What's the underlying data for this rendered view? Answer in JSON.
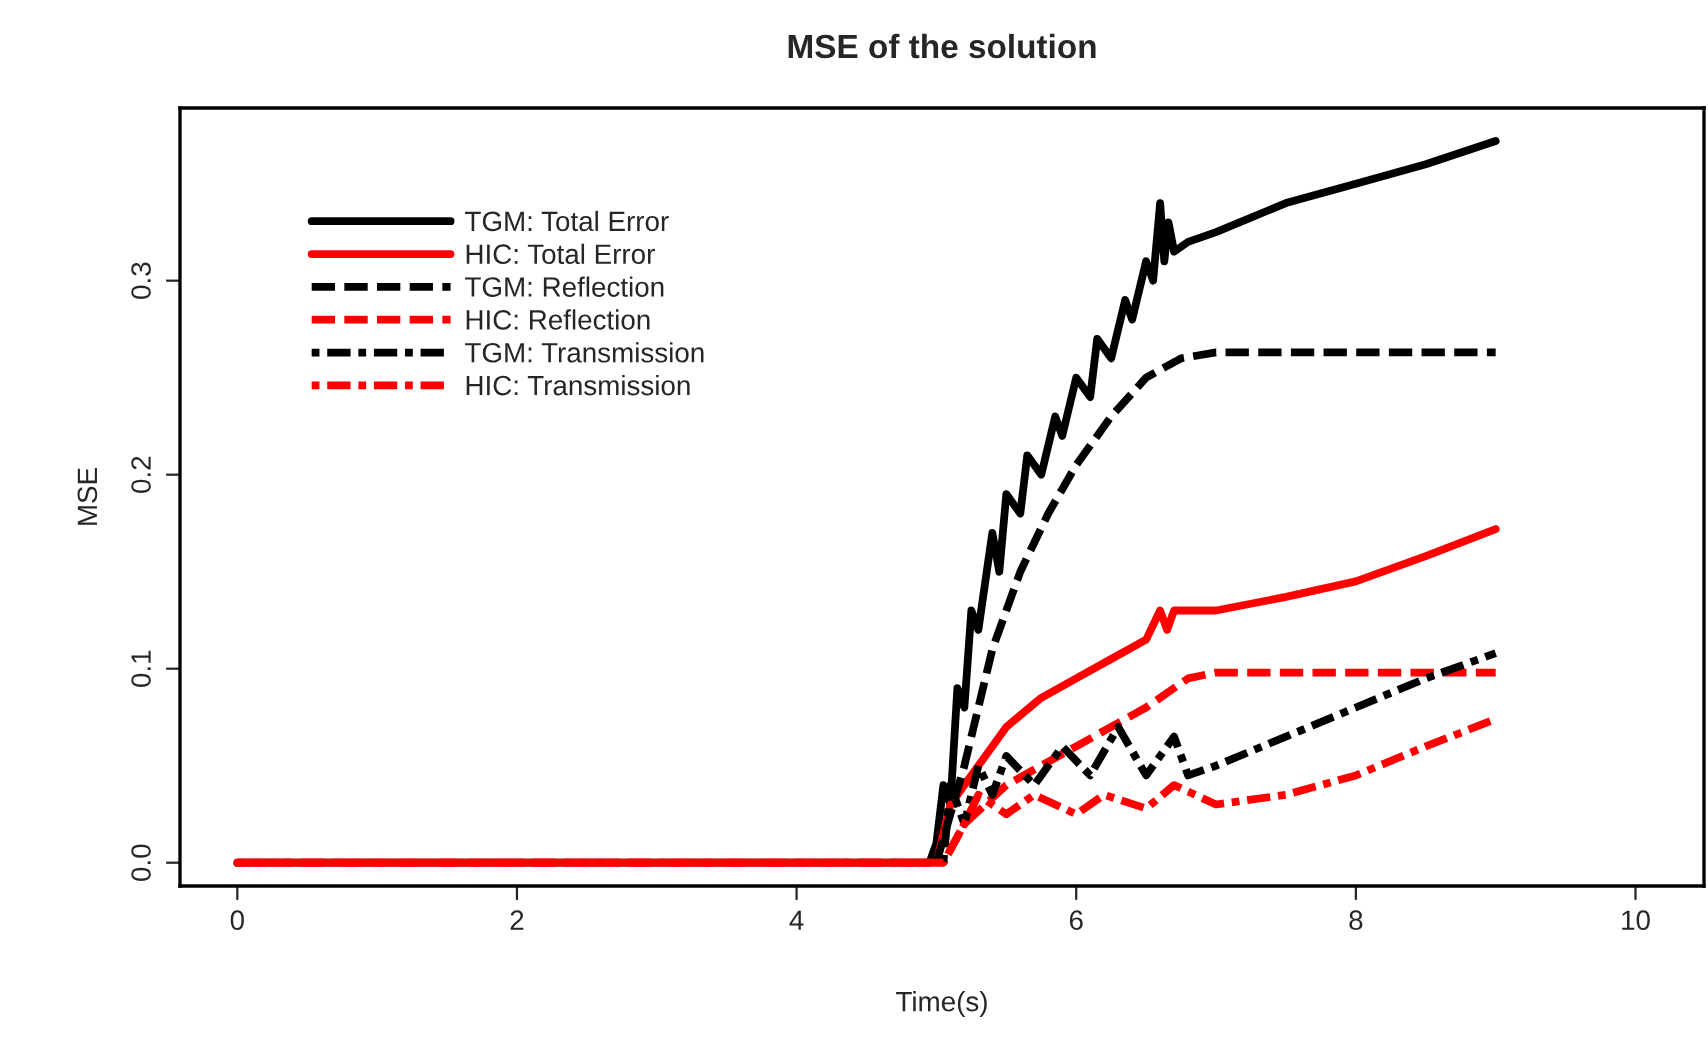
{
  "chart_data": {
    "type": "line",
    "title": "MSE of the solution",
    "xlabel": "Time(s)",
    "ylabel": "MSE",
    "xlim": [
      -0.41,
      10.49
    ],
    "ylim": [
      -0.012,
      0.389
    ],
    "xticks": [
      0,
      2,
      4,
      6,
      8,
      10
    ],
    "yticks": [
      {
        "value": 0,
        "label": "0.0"
      },
      0.1,
      0.2,
      0.3
    ],
    "grid": false,
    "legend": "top left",
    "marker": "none",
    "series": [
      {
        "name": "TGM: Total Error",
        "color": "#000000",
        "line_style": "solid",
        "x": [
          0,
          4.95,
          5.0,
          5.05,
          5.1,
          5.15,
          5.2,
          5.25,
          5.3,
          5.4,
          5.45,
          5.5,
          5.6,
          5.65,
          5.75,
          5.85,
          5.9,
          6.0,
          6.1,
          6.15,
          6.25,
          6.35,
          6.4,
          6.5,
          6.55,
          6.6,
          6.63,
          6.66,
          6.7,
          6.8,
          7.0,
          7.5,
          8.0,
          8.5,
          9.0
        ],
        "values": [
          0,
          0,
          0.01,
          0.04,
          0.03,
          0.09,
          0.08,
          0.13,
          0.12,
          0.17,
          0.15,
          0.19,
          0.18,
          0.21,
          0.2,
          0.23,
          0.22,
          0.25,
          0.24,
          0.27,
          0.26,
          0.29,
          0.28,
          0.31,
          0.3,
          0.34,
          0.31,
          0.33,
          0.315,
          0.32,
          0.325,
          0.34,
          0.35,
          0.36,
          0.372
        ]
      },
      {
        "name": "HIC: Total Error",
        "color": "#ff0000",
        "line_style": "solid",
        "x": [
          0,
          5.0,
          5.1,
          5.2,
          5.3,
          5.5,
          5.75,
          6.0,
          6.25,
          6.5,
          6.6,
          6.65,
          6.7,
          7.0,
          7.5,
          8.0,
          8.5,
          9.0
        ],
        "values": [
          0,
          0,
          0.03,
          0.04,
          0.05,
          0.07,
          0.085,
          0.095,
          0.105,
          0.115,
          0.13,
          0.12,
          0.13,
          0.13,
          0.137,
          0.145,
          0.158,
          0.172
        ]
      },
      {
        "name": "TGM: Reflection",
        "color": "#000000",
        "line_style": "dashed",
        "x": [
          5.0,
          5.2,
          5.4,
          5.6,
          5.8,
          6.0,
          6.25,
          6.5,
          6.75,
          7.0,
          9.0
        ],
        "values": [
          0,
          0.05,
          0.11,
          0.15,
          0.18,
          0.205,
          0.23,
          0.25,
          0.26,
          0.263,
          0.263
        ]
      },
      {
        "name": "HIC: Reflection",
        "color": "#ff0000",
        "line_style": "dashed",
        "x": [
          0,
          5.05,
          5.2,
          5.5,
          6.0,
          6.5,
          6.8,
          7.0,
          9.0
        ],
        "values": [
          0,
          0,
          0.02,
          0.04,
          0.06,
          0.08,
          0.095,
          0.098,
          0.098
        ]
      },
      {
        "name": "TGM: Transmission",
        "color": "#000000",
        "line_style": "dashdot",
        "x": [
          5.05,
          5.1,
          5.2,
          5.3,
          5.4,
          5.5,
          5.7,
          5.9,
          6.1,
          6.3,
          6.5,
          6.7,
          6.8,
          7.0,
          7.5,
          8.0,
          8.5,
          9.0
        ],
        "values": [
          0,
          0.04,
          0.02,
          0.05,
          0.035,
          0.055,
          0.04,
          0.06,
          0.045,
          0.07,
          0.045,
          0.065,
          0.045,
          0.05,
          0.065,
          0.08,
          0.095,
          0.108
        ]
      },
      {
        "name": "HIC: Transmission",
        "color": "#ff0000",
        "line_style": "dashdot",
        "x": [
          0,
          5.05,
          5.2,
          5.3,
          5.5,
          5.7,
          6.0,
          6.2,
          6.5,
          6.7,
          7.0,
          7.5,
          8.0,
          8.5,
          9.0
        ],
        "values": [
          0,
          0,
          0.02,
          0.035,
          0.025,
          0.035,
          0.025,
          0.035,
          0.028,
          0.04,
          0.03,
          0.035,
          0.045,
          0.06,
          0.074
        ]
      }
    ]
  }
}
